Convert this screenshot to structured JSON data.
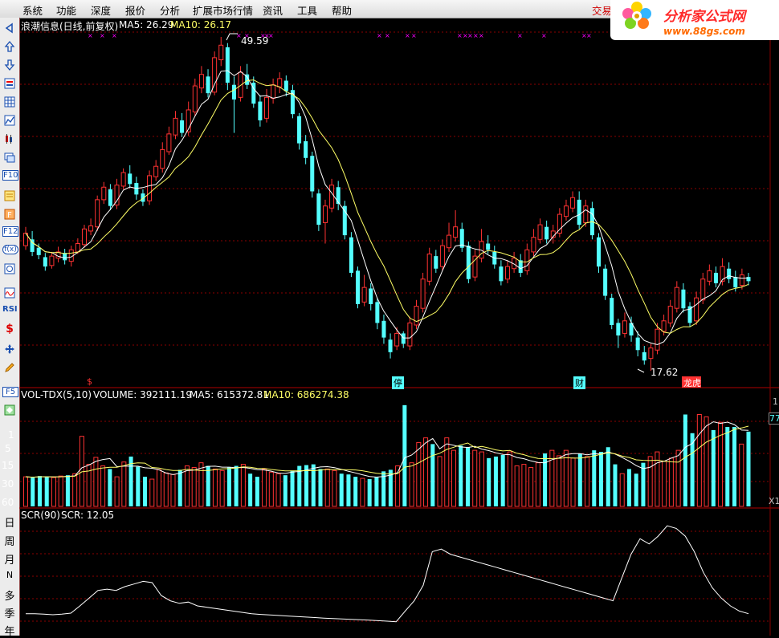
{
  "menubar": {
    "items": [
      "系统",
      "功能",
      "深度",
      "报价",
      "分析",
      "扩展市场行情",
      "资讯",
      "工具",
      "帮助"
    ],
    "trade_link": "交易未",
    "brand_title": "分析家公式网",
    "brand_url": "www.88gs.com"
  },
  "toolbar": {
    "icons": [
      "arrow-left-icon",
      "arrow-up-icon",
      "arrow-down-icon",
      "stock-list-icon",
      "table-icon",
      "line-chart-icon",
      "candlestick-icon",
      "windows-icon",
      "f10-icon",
      "report-icon",
      "f-icon",
      "f12-icon",
      "fx-icon",
      "circle-icon",
      "wave-icon",
      "rsi-icon",
      "dollar-icon",
      "move-icon",
      "pencil-icon",
      "f5-icon",
      "switch-icon"
    ],
    "labels": {
      "f10": "F10",
      "f12": "F12",
      "fx": "f(x)",
      "rsi": "RSI",
      "f5": "F5"
    },
    "period_labels": [
      "日",
      "周",
      "月",
      "N",
      "多",
      "季",
      "年"
    ]
  },
  "main_panel": {
    "stock_name": "浪潮信息(日线,前复权)",
    "ma5_label": "MA5: 26.29",
    "ma10_label": "MA10: 26.17",
    "high_label": "49.59",
    "low_label": "17.62",
    "markers": [
      "$",
      "停",
      "财",
      "龙虎榜"
    ],
    "colors": {
      "up": "#ff3232",
      "down": "#54ffff",
      "ma5": "#ffffff",
      "ma10": "#ffff66",
      "grid": "#8b0000",
      "marker": "#ff00ff"
    }
  },
  "volume_panel": {
    "title": "VOL-TDX(5,10)",
    "volume_label": "VOLUME: 392111.19",
    "ma5_label": "MA5: 615372.81",
    "ma10_label": "MA10: 686274.38",
    "left_axis": [
      "1",
      "5",
      "15",
      "30",
      "60"
    ],
    "right_axis_top": "1",
    "right_axis_mid": "77",
    "right_axis_bottom": "X1"
  },
  "scr_panel": {
    "title": "SCR(90)",
    "scr_label": "SCR: 12.05"
  },
  "chart_data": {
    "type": "candlestick",
    "title": "浪潮信息(日线,前复权)",
    "price_range": [
      17.62,
      49.59
    ],
    "annotations": [
      {
        "label": "49.59",
        "kind": "high"
      },
      {
        "label": "17.62",
        "kind": "low"
      }
    ],
    "series": [
      {
        "name": "MA5",
        "value": 26.29
      },
      {
        "name": "MA10",
        "value": 26.17
      },
      {
        "name": "VOLUME",
        "value": 392111.19
      },
      {
        "name": "MA5",
        "value": 615372.81
      },
      {
        "name": "MA10",
        "value": 686274.38
      },
      {
        "name": "SCR",
        "value": 12.05
      }
    ],
    "candles": [
      {
        "o": 29.6,
        "c": 30.8,
        "h": 31.4,
        "l": 29.2
      },
      {
        "o": 30.2,
        "c": 29.0,
        "h": 31.0,
        "l": 28.6
      },
      {
        "o": 29.4,
        "c": 28.7,
        "h": 29.8,
        "l": 28.3
      },
      {
        "o": 28.5,
        "c": 27.6,
        "h": 28.9,
        "l": 27.2
      },
      {
        "o": 27.7,
        "c": 28.6,
        "h": 29.0,
        "l": 27.4
      },
      {
        "o": 28.4,
        "c": 29.0,
        "h": 29.5,
        "l": 28.0
      },
      {
        "o": 28.9,
        "c": 28.2,
        "h": 29.3,
        "l": 27.8
      },
      {
        "o": 28.1,
        "c": 29.2,
        "h": 29.6,
        "l": 27.6
      },
      {
        "o": 29.0,
        "c": 29.8,
        "h": 30.3,
        "l": 28.8
      },
      {
        "o": 29.7,
        "c": 31.2,
        "h": 31.6,
        "l": 29.4
      },
      {
        "o": 31.0,
        "c": 31.5,
        "h": 32.2,
        "l": 30.6
      },
      {
        "o": 31.4,
        "c": 34.0,
        "h": 34.4,
        "l": 31.0
      },
      {
        "o": 34.0,
        "c": 35.2,
        "h": 35.7,
        "l": 33.6
      },
      {
        "o": 35.0,
        "c": 33.4,
        "h": 35.5,
        "l": 33.0
      },
      {
        "o": 33.5,
        "c": 35.4,
        "h": 36.0,
        "l": 33.1
      },
      {
        "o": 35.3,
        "c": 36.6,
        "h": 37.0,
        "l": 35.0
      },
      {
        "o": 36.5,
        "c": 35.5,
        "h": 37.3,
        "l": 35.1
      },
      {
        "o": 35.6,
        "c": 34.5,
        "h": 36.2,
        "l": 34.0
      },
      {
        "o": 34.6,
        "c": 33.8,
        "h": 35.0,
        "l": 33.4
      },
      {
        "o": 33.9,
        "c": 36.3,
        "h": 36.8,
        "l": 33.5
      },
      {
        "o": 36.2,
        "c": 37.2,
        "h": 37.8,
        "l": 35.8
      },
      {
        "o": 37.0,
        "c": 38.8,
        "h": 39.5,
        "l": 36.6
      },
      {
        "o": 38.6,
        "c": 40.3,
        "h": 41.0,
        "l": 38.3
      },
      {
        "o": 40.2,
        "c": 41.8,
        "h": 42.5,
        "l": 39.8
      },
      {
        "o": 41.6,
        "c": 40.4,
        "h": 42.3,
        "l": 40.0
      },
      {
        "o": 40.5,
        "c": 42.6,
        "h": 43.4,
        "l": 40.1
      },
      {
        "o": 42.4,
        "c": 44.9,
        "h": 45.6,
        "l": 42.0
      },
      {
        "o": 44.7,
        "c": 46.0,
        "h": 46.8,
        "l": 44.2
      },
      {
        "o": 45.8,
        "c": 44.2,
        "h": 46.5,
        "l": 43.8
      },
      {
        "o": 44.3,
        "c": 47.6,
        "h": 48.2,
        "l": 44.0
      },
      {
        "o": 47.4,
        "c": 48.8,
        "h": 49.59,
        "l": 46.8
      },
      {
        "o": 48.6,
        "c": 45.2,
        "h": 49.0,
        "l": 44.5
      },
      {
        "o": 45.0,
        "c": 43.6,
        "h": 45.8,
        "l": 40.4
      },
      {
        "o": 43.8,
        "c": 46.2,
        "h": 46.8,
        "l": 43.4
      },
      {
        "o": 46.0,
        "c": 45.0,
        "h": 47.0,
        "l": 44.6
      },
      {
        "o": 45.2,
        "c": 43.2,
        "h": 45.8,
        "l": 42.8
      },
      {
        "o": 43.4,
        "c": 41.6,
        "h": 44.0,
        "l": 41.0
      },
      {
        "o": 41.8,
        "c": 43.8,
        "h": 44.6,
        "l": 41.4
      },
      {
        "o": 43.7,
        "c": 45.0,
        "h": 45.6,
        "l": 43.2
      },
      {
        "o": 44.8,
        "c": 45.6,
        "h": 46.2,
        "l": 44.2
      },
      {
        "o": 45.4,
        "c": 44.4,
        "h": 45.9,
        "l": 43.9
      },
      {
        "o": 44.5,
        "c": 42.2,
        "h": 45.0,
        "l": 41.8
      },
      {
        "o": 42.0,
        "c": 39.4,
        "h": 42.3,
        "l": 38.8
      },
      {
        "o": 39.6,
        "c": 38.0,
        "h": 40.2,
        "l": 37.4
      },
      {
        "o": 38.2,
        "c": 34.8,
        "h": 38.6,
        "l": 34.2
      },
      {
        "o": 34.6,
        "c": 31.6,
        "h": 35.0,
        "l": 31.0
      },
      {
        "o": 31.8,
        "c": 33.4,
        "h": 34.0,
        "l": 29.8
      },
      {
        "o": 33.2,
        "c": 35.4,
        "h": 36.0,
        "l": 32.8
      },
      {
        "o": 35.2,
        "c": 33.6,
        "h": 35.8,
        "l": 33.0
      },
      {
        "o": 33.4,
        "c": 30.6,
        "h": 33.9,
        "l": 30.2
      },
      {
        "o": 30.4,
        "c": 27.0,
        "h": 30.9,
        "l": 26.6
      },
      {
        "o": 27.2,
        "c": 24.0,
        "h": 27.6,
        "l": 23.6
      },
      {
        "o": 24.2,
        "c": 25.6,
        "h": 26.8,
        "l": 23.8
      },
      {
        "o": 25.5,
        "c": 24.0,
        "h": 26.0,
        "l": 23.4
      },
      {
        "o": 24.2,
        "c": 22.2,
        "h": 24.6,
        "l": 21.6
      },
      {
        "o": 22.4,
        "c": 20.8,
        "h": 23.0,
        "l": 20.2
      },
      {
        "o": 20.6,
        "c": 19.4,
        "h": 21.2,
        "l": 18.8
      },
      {
        "o": 20.0,
        "c": 21.2,
        "h": 21.8,
        "l": 19.6
      },
      {
        "o": 21.2,
        "c": 20.2,
        "h": 21.4,
        "l": 19.8
      },
      {
        "o": 20.0,
        "c": 22.2,
        "h": 22.8,
        "l": 19.6
      },
      {
        "o": 22.0,
        "c": 23.8,
        "h": 24.4,
        "l": 21.6
      },
      {
        "o": 23.6,
        "c": 26.4,
        "h": 27.0,
        "l": 23.2
      },
      {
        "o": 26.2,
        "c": 28.8,
        "h": 29.4,
        "l": 25.8
      },
      {
        "o": 28.6,
        "c": 27.4,
        "h": 29.2,
        "l": 27.0
      },
      {
        "o": 27.6,
        "c": 29.6,
        "h": 30.2,
        "l": 27.2
      },
      {
        "o": 29.4,
        "c": 30.6,
        "h": 31.8,
        "l": 29.0
      },
      {
        "o": 30.4,
        "c": 31.4,
        "h": 33.0,
        "l": 30.0
      },
      {
        "o": 31.2,
        "c": 29.4,
        "h": 31.8,
        "l": 29.0
      },
      {
        "o": 29.6,
        "c": 26.4,
        "h": 30.0,
        "l": 26.0
      },
      {
        "o": 26.6,
        "c": 28.6,
        "h": 29.2,
        "l": 26.2
      },
      {
        "o": 28.4,
        "c": 30.0,
        "h": 31.2,
        "l": 28.0
      },
      {
        "o": 29.8,
        "c": 29.2,
        "h": 30.6,
        "l": 28.8
      },
      {
        "o": 29.0,
        "c": 27.8,
        "h": 29.6,
        "l": 27.4
      },
      {
        "o": 27.6,
        "c": 26.2,
        "h": 28.2,
        "l": 25.8
      },
      {
        "o": 26.4,
        "c": 27.6,
        "h": 28.2,
        "l": 26.0
      },
      {
        "o": 27.4,
        "c": 28.4,
        "h": 29.0,
        "l": 27.0
      },
      {
        "o": 28.2,
        "c": 27.0,
        "h": 28.8,
        "l": 26.6
      },
      {
        "o": 27.2,
        "c": 29.2,
        "h": 29.8,
        "l": 26.8
      },
      {
        "o": 29.0,
        "c": 30.4,
        "h": 31.2,
        "l": 28.6
      },
      {
        "o": 30.2,
        "c": 31.6,
        "h": 32.2,
        "l": 29.8
      },
      {
        "o": 31.4,
        "c": 30.2,
        "h": 32.0,
        "l": 29.8
      },
      {
        "o": 30.4,
        "c": 31.0,
        "h": 31.6,
        "l": 29.8
      },
      {
        "o": 30.8,
        "c": 32.6,
        "h": 33.2,
        "l": 30.4
      },
      {
        "o": 32.4,
        "c": 33.4,
        "h": 34.0,
        "l": 32.0
      },
      {
        "o": 33.2,
        "c": 34.2,
        "h": 34.8,
        "l": 32.8
      },
      {
        "o": 34.0,
        "c": 31.6,
        "h": 34.8,
        "l": 31.2
      },
      {
        "o": 31.8,
        "c": 33.4,
        "h": 34.0,
        "l": 31.4
      },
      {
        "o": 33.2,
        "c": 30.6,
        "h": 33.8,
        "l": 30.2
      },
      {
        "o": 30.4,
        "c": 27.6,
        "h": 30.8,
        "l": 27.0
      },
      {
        "o": 27.4,
        "c": 24.8,
        "h": 27.8,
        "l": 24.4
      },
      {
        "o": 24.6,
        "c": 22.0,
        "h": 25.0,
        "l": 21.6
      },
      {
        "o": 22.2,
        "c": 21.0,
        "h": 22.6,
        "l": 19.8
      },
      {
        "o": 21.2,
        "c": 22.4,
        "h": 23.2,
        "l": 20.8
      },
      {
        "o": 22.2,
        "c": 21.0,
        "h": 22.8,
        "l": 20.4
      },
      {
        "o": 20.8,
        "c": 19.6,
        "h": 21.4,
        "l": 19.0
      },
      {
        "o": 19.4,
        "c": 18.6,
        "h": 20.0,
        "l": 18.2
      },
      {
        "o": 18.8,
        "c": 19.8,
        "h": 20.2,
        "l": 17.62
      },
      {
        "o": 19.6,
        "c": 21.6,
        "h": 22.2,
        "l": 19.2
      },
      {
        "o": 21.4,
        "c": 22.4,
        "h": 23.0,
        "l": 21.0
      },
      {
        "o": 22.2,
        "c": 23.8,
        "h": 24.4,
        "l": 21.8
      },
      {
        "o": 23.6,
        "c": 25.6,
        "h": 26.2,
        "l": 23.2
      },
      {
        "o": 25.4,
        "c": 23.6,
        "h": 26.0,
        "l": 23.2
      },
      {
        "o": 23.8,
        "c": 22.2,
        "h": 24.2,
        "l": 21.8
      },
      {
        "o": 22.4,
        "c": 24.6,
        "h": 25.2,
        "l": 22.0
      },
      {
        "o": 24.4,
        "c": 26.4,
        "h": 27.0,
        "l": 24.0
      },
      {
        "o": 26.2,
        "c": 27.2,
        "h": 27.8,
        "l": 25.8
      },
      {
        "o": 27.0,
        "c": 26.0,
        "h": 27.6,
        "l": 25.6
      },
      {
        "o": 26.2,
        "c": 27.6,
        "h": 28.4,
        "l": 25.8
      },
      {
        "o": 27.4,
        "c": 26.4,
        "h": 28.0,
        "l": 26.0
      },
      {
        "o": 26.6,
        "c": 25.6,
        "h": 27.2,
        "l": 25.2
      },
      {
        "o": 25.8,
        "c": 26.8,
        "h": 27.4,
        "l": 25.4
      },
      {
        "o": 26.6,
        "c": 26.2,
        "h": 27.0,
        "l": 25.8
      }
    ],
    "volume": [
      380,
      370,
      390,
      380,
      370,
      390,
      400,
      420,
      900,
      540,
      630,
      520,
      480,
      380,
      570,
      640,
      510,
      380,
      350,
      470,
      430,
      410,
      470,
      520,
      500,
      560,
      520,
      480,
      460,
      500,
      520,
      540,
      420,
      380,
      480,
      440,
      420,
      400,
      460,
      520,
      530,
      540,
      480,
      480,
      460,
      420,
      410,
      380,
      360,
      350,
      380,
      450,
      470,
      520,
      1300,
      560,
      820,
      880,
      800,
      640,
      880,
      720,
      780,
      760,
      720,
      700,
      620,
      640,
      660,
      700,
      520,
      540,
      500,
      560,
      680,
      720,
      650,
      720,
      620,
      680,
      640,
      720,
      700,
      760,
      540,
      420,
      480,
      420,
      560,
      640,
      700,
      580,
      620,
      720,
      1180,
      940,
      1180,
      1150,
      980,
      1080,
      1020,
      1020,
      800,
      960
    ],
    "scr": [
      12,
      12,
      11.6,
      11.2,
      11.6,
      12.4,
      18,
      24,
      30,
      31,
      30,
      33,
      35,
      37,
      36,
      26,
      22,
      20,
      21,
      18,
      17,
      16,
      15,
      14,
      13,
      12,
      11.4,
      11,
      10.6,
      10.2,
      9.8,
      9.4,
      9,
      8.6,
      8.2,
      7.9,
      7.6,
      7.3,
      7.0,
      6.6,
      6.2,
      5.8,
      14,
      22,
      34,
      60,
      62,
      58,
      56,
      54,
      52,
      50,
      48,
      46,
      44,
      42,
      40,
      38,
      36,
      34,
      32,
      30,
      28,
      26,
      24,
      22,
      40,
      58,
      70,
      66,
      72,
      80,
      78,
      72,
      60,
      44,
      32,
      24,
      18,
      14,
      12
    ]
  }
}
